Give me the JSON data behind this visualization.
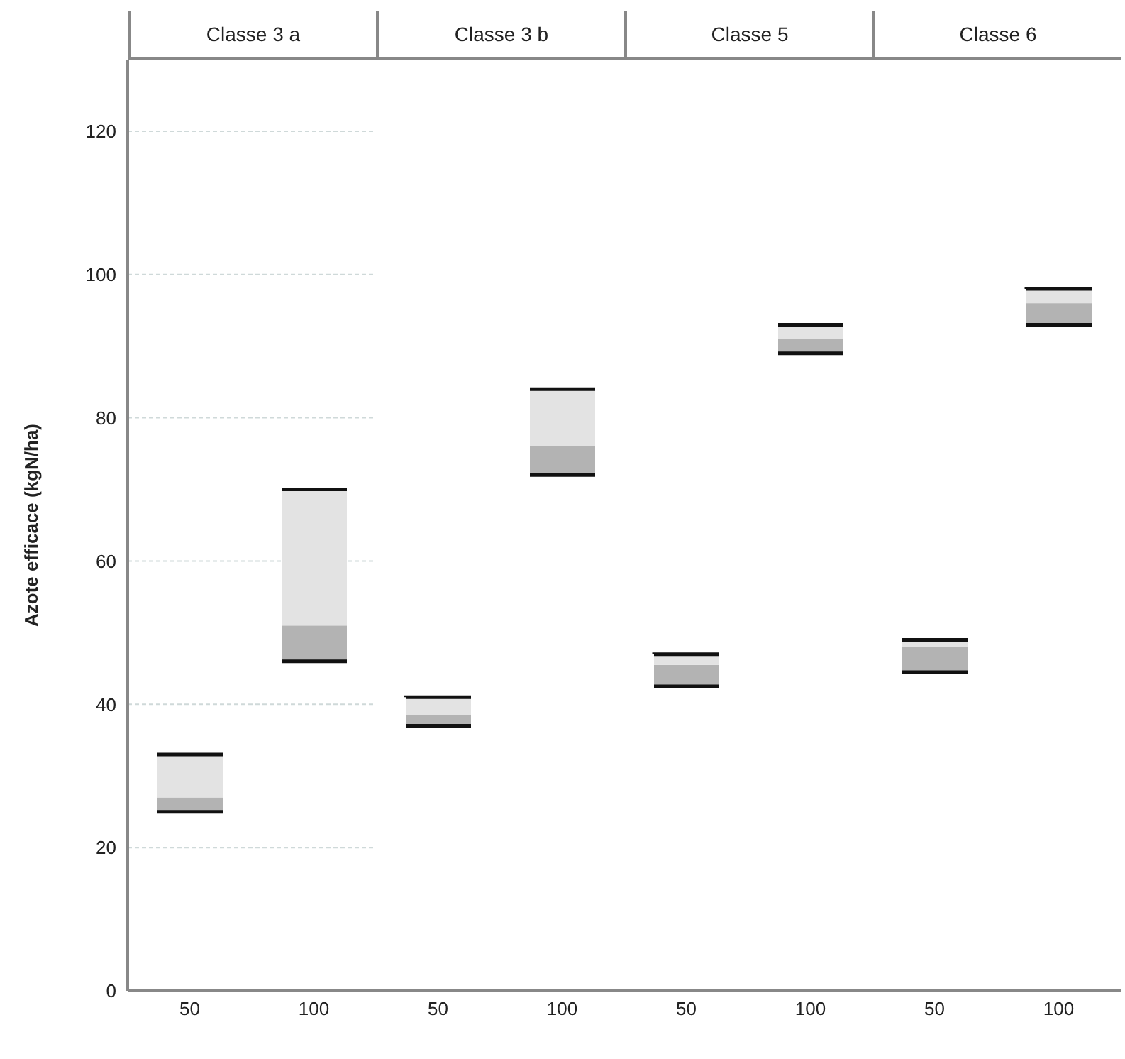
{
  "chart_data": [
    {
      "type": "bar",
      "title": "Classe 3 a",
      "ylabel": "Azote efficace (kgN/ha)",
      "categories": [
        "50",
        "100"
      ],
      "series": [
        {
          "color": "#b3b3b3",
          "base": [
            25,
            46
          ],
          "values": [
            2,
            5
          ]
        },
        {
          "color": "#e3e3e3",
          "base": [
            27,
            51
          ],
          "values": [
            6,
            19
          ]
        }
      ],
      "ylim": [
        0,
        130
      ],
      "yticks": [
        0,
        20,
        40,
        60,
        80,
        100,
        120
      ],
      "grid": "y"
    },
    {
      "type": "bar",
      "title": "Classe 3 b",
      "categories": [
        "50",
        "100"
      ],
      "series": [
        {
          "color": "#b3b3b3",
          "base": [
            37,
            72
          ],
          "values": [
            1.5,
            4
          ]
        },
        {
          "color": "#e3e3e3",
          "base": [
            38.5,
            76
          ],
          "values": [
            2.5,
            8
          ]
        }
      ],
      "ylim": [
        0,
        130
      ],
      "yticks": [
        0,
        20,
        40,
        60,
        80,
        100,
        120
      ],
      "grid": "y",
      "tick_labels": "x"
    },
    {
      "type": "bar",
      "title": "Classe 5",
      "categories": [
        "50",
        "100"
      ],
      "series": [
        {
          "color": "#b3b3b3",
          "base": [
            42.5,
            89
          ],
          "values": [
            3,
            2
          ]
        },
        {
          "color": "#e3e3e3",
          "base": [
            45.5,
            91
          ],
          "values": [
            1.5,
            2
          ]
        }
      ],
      "ylim": [
        0,
        130
      ],
      "yticks": [
        0,
        20,
        40,
        60,
        80,
        100,
        120
      ],
      "grid": "y",
      "tick_labels": "x"
    },
    {
      "type": "bar",
      "title": "Classe 6",
      "categories": [
        "50",
        "100"
      ],
      "series": [
        {
          "color": "#b3b3b3",
          "base": [
            44.5,
            93
          ],
          "values": [
            3.5,
            3
          ]
        },
        {
          "color": "#e3e3e3",
          "base": [
            48,
            96
          ],
          "values": [
            1,
            2
          ]
        }
      ],
      "ylim": [
        0,
        130
      ],
      "yticks": [
        0,
        20,
        40,
        60,
        80,
        100,
        120
      ],
      "grid": "y",
      "tick_labels": "x"
    }
  ]
}
